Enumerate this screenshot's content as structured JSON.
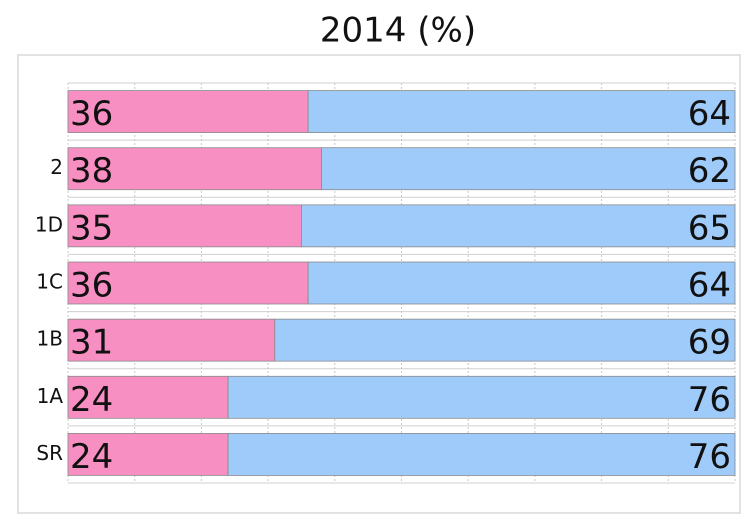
{
  "chart_data": {
    "type": "stacked-bar-horizontal",
    "title": "2014 (%)",
    "categories": [
      null,
      "2",
      "1D",
      "1C",
      "1B",
      "1A",
      "SR"
    ],
    "series": [
      {
        "color": "#f78fc3",
        "values": [
          36,
          38,
          35,
          36,
          31,
          24,
          24
        ]
      },
      {
        "color": "#9fcbfa",
        "values": [
          64,
          62,
          65,
          64,
          69,
          76,
          76
        ]
      }
    ],
    "xlim": [
      0,
      100
    ],
    "xticks": [
      0,
      10,
      20,
      30,
      40,
      50,
      60,
      70,
      80,
      90,
      100
    ],
    "grid": true
  }
}
